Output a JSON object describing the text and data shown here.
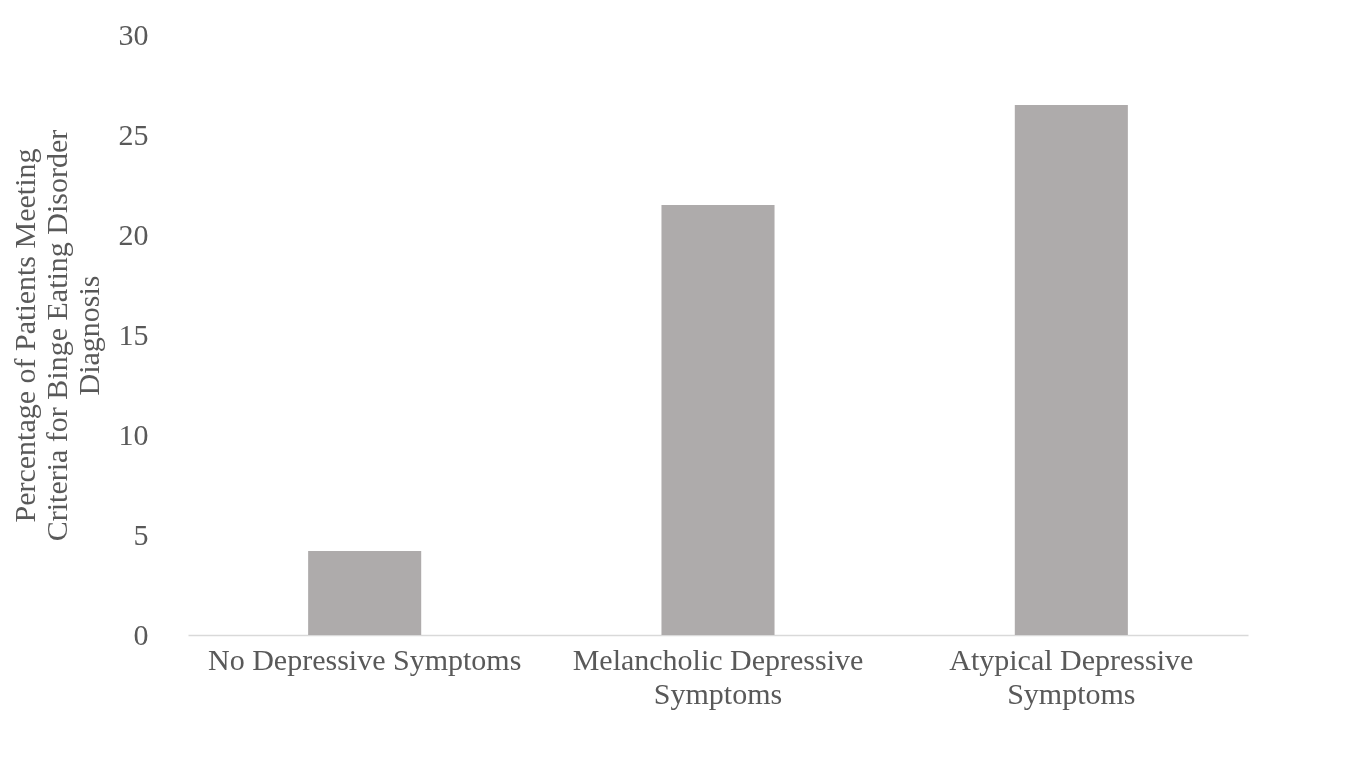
{
  "chart_data": {
    "type": "bar",
    "ylabel": "Percentage of Patients Meeting Criteria for Binge Eating Disorder Diagnosis",
    "categories": [
      "No Depressive Symptoms",
      "Melancholic Depressive Symptoms",
      "Atypical Depressive Symptoms"
    ],
    "values": [
      4.2,
      21.5,
      26.5
    ],
    "color": "#aeabab",
    "ylim": [
      0,
      30
    ],
    "yticks": [
      0,
      5,
      10,
      15,
      20,
      25,
      30
    ],
    "grid": false
  }
}
